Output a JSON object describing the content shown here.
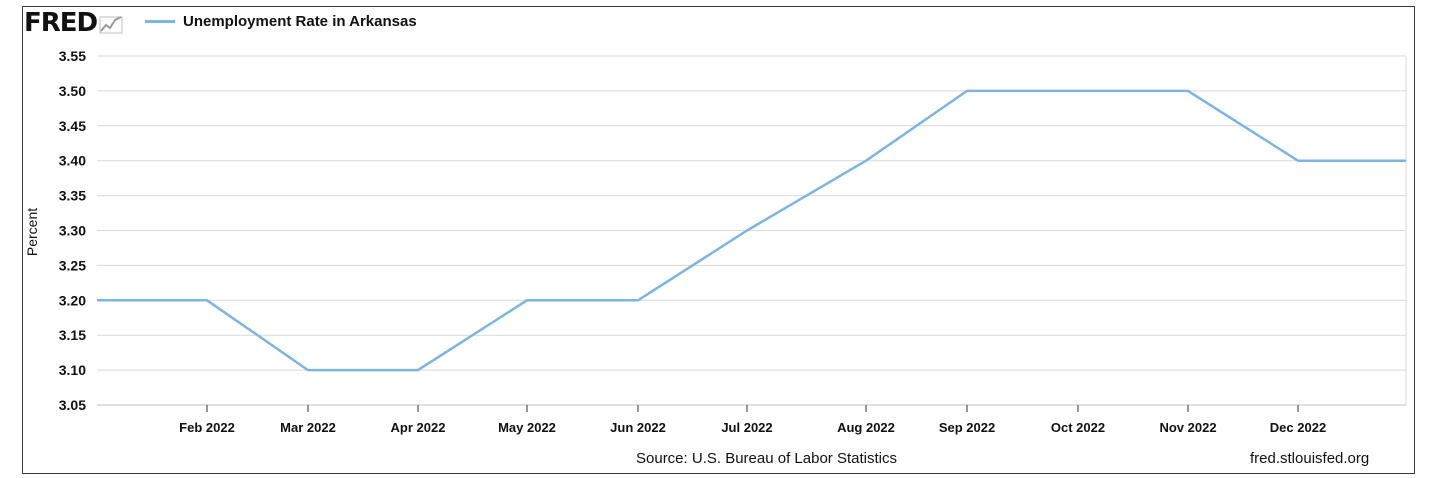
{
  "brand": {
    "logo_text": "FRED",
    "logo_icon": "chart-sparkline-icon"
  },
  "footer": {
    "source": "Source:  U.S. Bureau of Labor Statistics",
    "url": "fred.stlouisfed.org"
  },
  "chart_data": {
    "type": "line",
    "title": "",
    "xlabel": "",
    "ylabel": "Percent",
    "ylim": [
      3.05,
      3.55
    ],
    "yticks": [
      "3.05",
      "3.10",
      "3.15",
      "3.20",
      "3.25",
      "3.30",
      "3.35",
      "3.40",
      "3.45",
      "3.50",
      "3.55"
    ],
    "grid": true,
    "legend_position": "top-left",
    "x": [
      "2022-01",
      "2022-02",
      "2022-03",
      "2022-04",
      "2022-05",
      "2022-06",
      "2022-07",
      "2022-08",
      "2022-09",
      "2022-10",
      "2022-11",
      "2022-12",
      "2023-01"
    ],
    "xtick_labels": [
      "Feb 2022",
      "Mar 2022",
      "Apr 2022",
      "May 2022",
      "Jun 2022",
      "Jul 2022",
      "Aug 2022",
      "Sep 2022",
      "Oct 2022",
      "Nov 2022",
      "Dec 2022"
    ],
    "series": [
      {
        "name": "Unemployment Rate in Arkansas",
        "color": "#7eb4e0",
        "values": [
          3.2,
          3.2,
          3.1,
          3.1,
          3.2,
          3.2,
          3.3,
          3.4,
          3.5,
          3.5,
          3.5,
          3.4,
          3.4
        ]
      }
    ]
  }
}
